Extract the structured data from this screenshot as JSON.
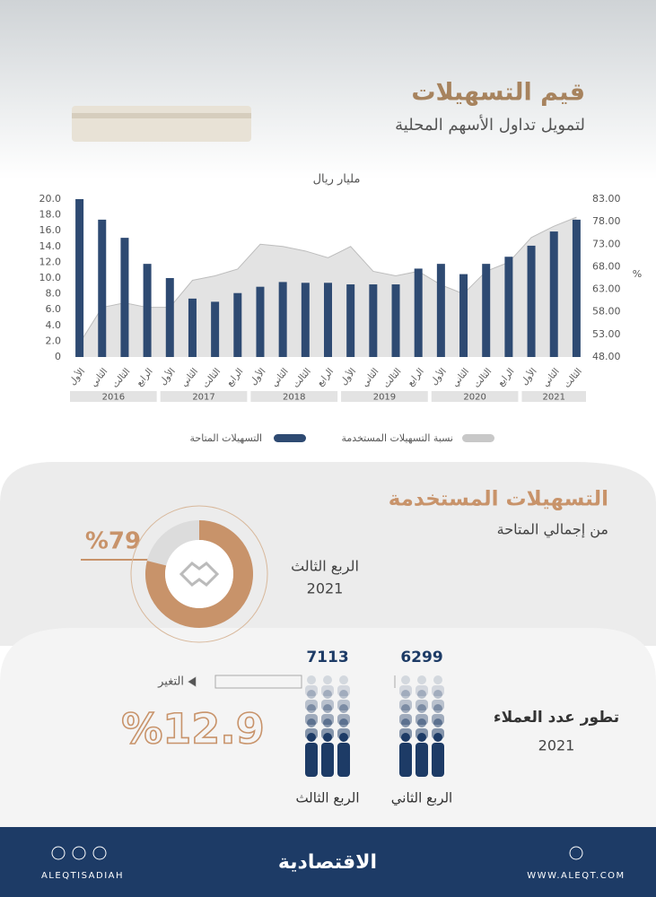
{
  "chart_data": {
    "type": "bar",
    "title": "قيم التسهيلات",
    "subtitle": "لتمويل تداول الأسهم المحلية",
    "y_label": "مليار ريال",
    "y2_label": "%",
    "categories": [
      "الأول",
      "الثاني",
      "الثالث",
      "الرابع",
      "الأول",
      "الثاني",
      "الثالث",
      "الرابع",
      "الأول",
      "الثاني",
      "الثالث",
      "الرابع",
      "الأول",
      "الثاني",
      "الثالث",
      "الرابع",
      "الأول",
      "الثاني",
      "الثالث",
      "الرابع",
      "الأول",
      "الثاني",
      "الثالث"
    ],
    "years": [
      "2016",
      "2017",
      "2018",
      "2019",
      "2020",
      "2021"
    ],
    "series": [
      {
        "name": "التسهيلات المتاحة",
        "color": "#2e4a72",
        "type": "bar",
        "values": [
          20.0,
          17.4,
          15.1,
          11.8,
          10.0,
          7.4,
          7.0,
          8.1,
          8.9,
          9.5,
          9.4,
          9.4,
          9.2,
          9.2,
          9.2,
          11.2,
          11.8,
          10.5,
          11.8,
          12.7,
          14.1,
          15.9,
          17.4
        ]
      },
      {
        "name": "نسبة التسهيلات المستخدمة",
        "color": "#d9d9d9",
        "type": "area",
        "axis": "y2",
        "values": [
          51,
          59,
          60,
          59,
          59,
          65,
          66,
          67.5,
          73,
          72.5,
          71.5,
          70,
          72.5,
          67,
          66,
          67,
          64,
          62,
          67,
          69,
          74.5,
          77,
          79
        ]
      }
    ],
    "ylim": [
      0,
      20
    ],
    "yticks": [
      0,
      {
        "value": 2,
        "label": "2.0"
      },
      {
        "value": 4,
        "label": "4.0"
      },
      {
        "value": 6,
        "label": "6.0"
      },
      {
        "value": 8,
        "label": "8.0"
      },
      {
        "value": 10,
        "label": "10.0"
      },
      {
        "value": 12,
        "label": "12.0"
      },
      {
        "value": 14,
        "label": "14.0"
      },
      {
        "value": 16,
        "label": "16.0"
      },
      {
        "value": 18,
        "label": "18.0"
      },
      {
        "value": 20,
        "label": "20.0"
      }
    ],
    "y2lim": [
      48,
      83
    ],
    "y2ticks": [
      {
        "value": 48,
        "label": "48.00"
      },
      {
        "value": 53,
        "label": "53.00"
      },
      {
        "value": 58,
        "label": "58.00"
      },
      {
        "value": 63,
        "label": "63.00"
      },
      {
        "value": 68,
        "label": "68.00"
      },
      {
        "value": 73,
        "label": "73.00"
      },
      {
        "value": 78,
        "label": "78.00"
      },
      {
        "value": 83,
        "label": "83.00"
      }
    ],
    "grid": false
  },
  "usage": {
    "title": "التسهيلات المستخدمة",
    "subtitle": "من إجمالي المتاحة",
    "value": 79,
    "value_label": "%79",
    "period": "الربع الثالث",
    "year": "2021"
  },
  "customers": {
    "title": "تطور عدد العملاء",
    "year": "2021",
    "items": [
      {
        "label": "الربع الثاني",
        "value": 6299
      },
      {
        "label": "الربع الثالث",
        "value": 7113
      }
    ],
    "change_label": "التغير",
    "change": {
      "value": 12.9,
      "label": "%12.9"
    }
  },
  "footer": {
    "handle": "ALEQTISADIAH",
    "brand": "الاقتصادية",
    "website": "WWW.ALEQT.COM"
  }
}
